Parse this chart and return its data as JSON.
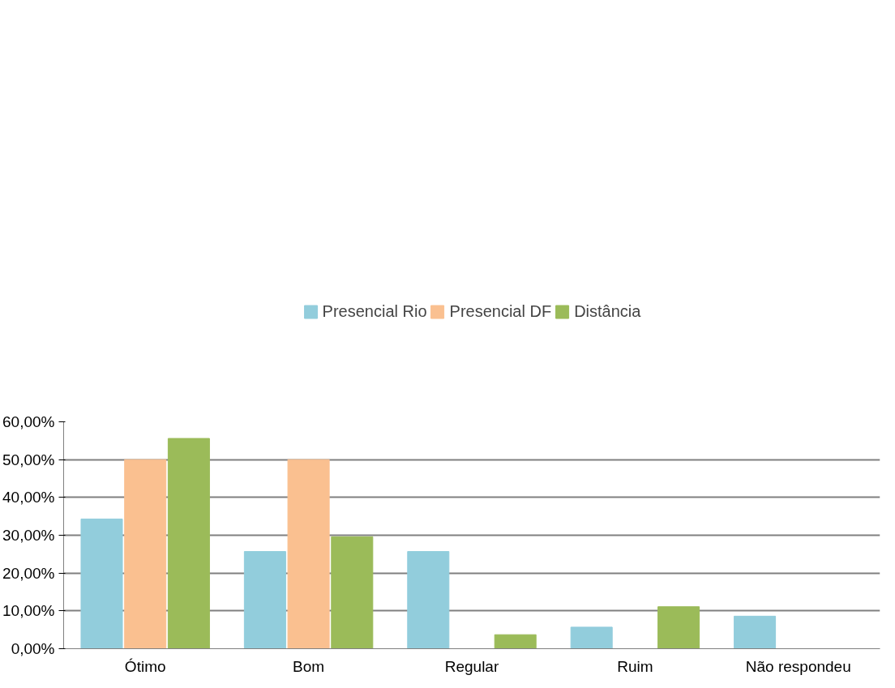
{
  "chart_data": {
    "type": "bar",
    "categories": [
      "Ótimo",
      "Bom",
      "Regular",
      "Ruim",
      "Não respondeu"
    ],
    "series": [
      {
        "name": "Presencial Rio",
        "color": "#92cddc",
        "values": [
          34.3,
          25.7,
          25.7,
          5.7,
          8.6
        ]
      },
      {
        "name": "Presencial DF",
        "color": "#fac090",
        "values": [
          50,
          50,
          0,
          0,
          0
        ]
      },
      {
        "name": "Distância",
        "color": "#9bbb59",
        "values": [
          55.6,
          29.6,
          3.7,
          11.1,
          0
        ]
      }
    ],
    "ylim": [
      0,
      60
    ],
    "yticks": [
      {
        "value": 0,
        "label": "0,00%"
      },
      {
        "value": 10,
        "label": "10,00%"
      },
      {
        "value": 20,
        "label": "20,00%"
      },
      {
        "value": 30,
        "label": "30,00%"
      },
      {
        "value": 40,
        "label": "40,00%"
      },
      {
        "value": 50,
        "label": "50,00%"
      },
      {
        "value": 60,
        "label": "60,00%"
      }
    ],
    "grid": "y",
    "legend": "top"
  }
}
